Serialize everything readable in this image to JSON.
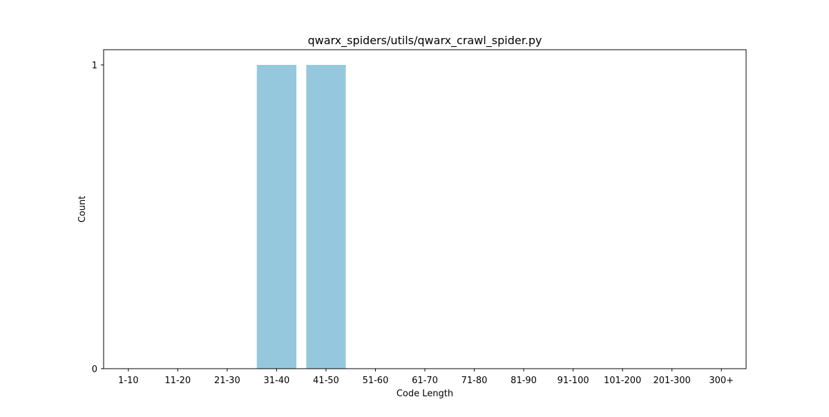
{
  "chart_data": {
    "type": "bar",
    "title": "qwarx_spiders/utils/qwarx_crawl_spider.py",
    "xlabel": "Code Length",
    "ylabel": "Count",
    "categories": [
      "1-10",
      "11-20",
      "21-30",
      "31-40",
      "41-50",
      "51-60",
      "61-70",
      "71-80",
      "81-90",
      "91-100",
      "101-200",
      "201-300",
      "300+"
    ],
    "values": [
      0,
      0,
      0,
      1,
      1,
      0,
      0,
      0,
      0,
      0,
      0,
      0,
      0
    ],
    "yticks": [
      "0",
      "1"
    ],
    "ylim": [
      0,
      1.05
    ],
    "grid": false,
    "colors": {
      "bar": "#95c8dd",
      "axis": "#000000"
    }
  }
}
